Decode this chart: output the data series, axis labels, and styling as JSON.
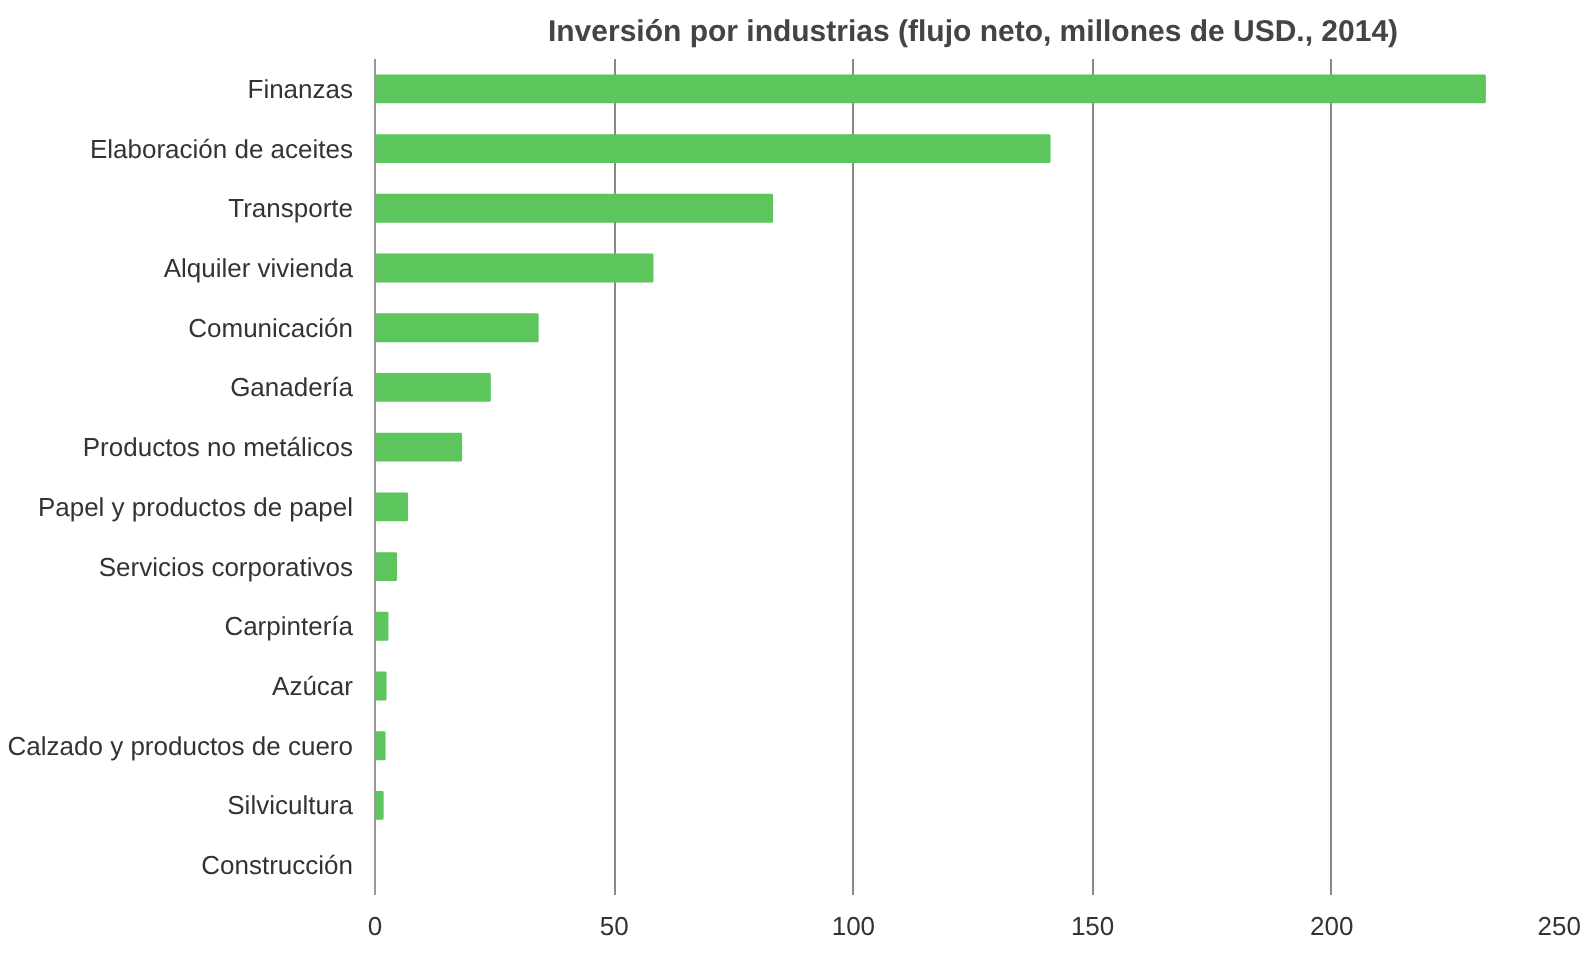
{
  "chart_data": {
    "type": "bar",
    "orientation": "horizontal",
    "title": "Inversión por industrias (flujo neto, millones de USD., 2014)",
    "categories": [
      "Finanzas",
      "Elaboración de aceites",
      "Transporte",
      "Alquiler vivienda",
      "Comunicación",
      "Ganadería",
      "Productos no metálicos",
      "Papel y productos de papel",
      "Servicios corporativos",
      "Carpintería",
      "Azúcar",
      "Calzado y productos de cuero",
      "Silvicultura",
      "Construcción"
    ],
    "values": [
      232,
      141,
      83,
      58,
      34,
      24,
      18,
      6.7,
      4.4,
      2.6,
      2.2,
      2,
      1.6,
      null
    ],
    "color": "#5cc55c",
    "xlim": [
      0,
      250
    ],
    "xticks": [
      0,
      50,
      100,
      150,
      200,
      250
    ],
    "grid": "x"
  }
}
